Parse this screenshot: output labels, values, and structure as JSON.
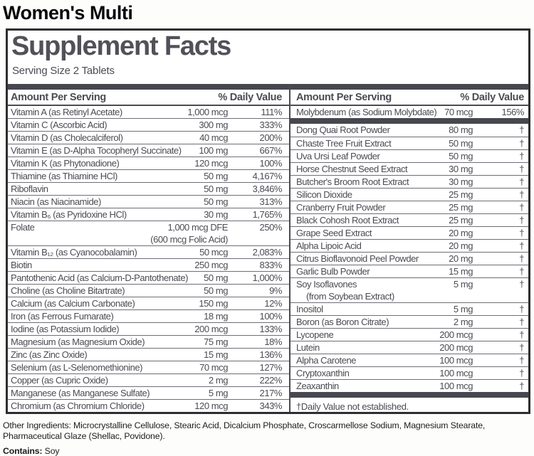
{
  "product_title": "Women's Multi",
  "panel": {
    "title": "Supplement Facts",
    "serving_size": "Serving Size 2 Tablets",
    "columns_header": {
      "amount": "Amount Per Serving",
      "dv": "% Daily Value"
    },
    "left_column": {
      "rows": [
        {
          "name": "Vitamin A (as Retinyl Acetate)",
          "amount": "1,000 mcg",
          "dv": "111%"
        },
        {
          "name": "Vitamin C (Ascorbic Acid)",
          "amount": "300 mg",
          "dv": "333%"
        },
        {
          "name": "Vitamin D (as Cholecalciferol)",
          "amount": "40 mcg",
          "dv": "200%"
        },
        {
          "name": "Vitamin E (as D-Alpha Tocopheryl Succinate)",
          "amount": "100 mg",
          "dv": "667%"
        },
        {
          "name": "Vitamin K (as Phytonadione)",
          "amount": "120 mcg",
          "dv": "100%"
        },
        {
          "name": "Thiamine (as Thiamine HCl)",
          "amount": "50 mg",
          "dv": "4,167%"
        },
        {
          "name": "Riboflavin",
          "amount": "50 mg",
          "dv": "3,846%"
        },
        {
          "name": "Niacin (as Niacinamide)",
          "amount": "50 mg",
          "dv": "313%"
        },
        {
          "name": "Vitamin B₆ (as Pyridoxine HCl)",
          "amount": "30 mg",
          "dv": "1,765%"
        },
        {
          "name": "Folate",
          "amount": "1,000 mcg DFE",
          "amount_sub": "(600 mcg Folic Acid)",
          "dv": "250%"
        },
        {
          "name": "Vitamin B₁₂ (as Cyanocobalamin)",
          "amount": "50 mcg",
          "dv": "2,083%"
        },
        {
          "name": "Biotin",
          "amount": "250 mcg",
          "dv": "833%"
        },
        {
          "name": "Pantothenic Acid (as Calcium-D-Pantothenate)",
          "amount": "50 mg",
          "dv": "1,000%"
        },
        {
          "name": "Choline (as Choline Bitartrate)",
          "amount": "50 mg",
          "dv": "9%"
        },
        {
          "name": "Calcium (as Calcium Carbonate)",
          "amount": "150 mg",
          "dv": "12%"
        },
        {
          "name": "Iron (as Ferrous Fumarate)",
          "amount": "18 mg",
          "dv": "100%"
        },
        {
          "name": "Iodine (as Potassium Iodide)",
          "amount": "200 mcg",
          "dv": "133%"
        },
        {
          "name": "Magnesium (as Magnesium Oxide)",
          "amount": "75 mg",
          "dv": "18%"
        },
        {
          "name": "Zinc (as Zinc Oxide)",
          "amount": "15 mg",
          "dv": "136%"
        },
        {
          "name": "Selenium (as L-Selenomethionine)",
          "amount": "70 mcg",
          "dv": "127%"
        },
        {
          "name": "Copper (as Cupric Oxide)",
          "amount": "2 mg",
          "dv": "222%"
        },
        {
          "name": "Manganese (as Manganese Sulfate)",
          "amount": "5 mg",
          "dv": "217%"
        },
        {
          "name": "Chromium (as Chromium Chloride)",
          "amount": "120 mcg",
          "dv": "343%"
        }
      ]
    },
    "right_column": {
      "rows": [
        {
          "name": "Molybdenum (as Sodium Molybdate)",
          "amount": "70 mcg",
          "dv": "156%"
        },
        {
          "type": "bar"
        },
        {
          "name": "Dong Quai Root Powder",
          "amount": "80 mg",
          "dv": "†"
        },
        {
          "name": "Chaste Tree Fruit Extract",
          "amount": "50 mg",
          "dv": "†"
        },
        {
          "name": "Uva Ursi Leaf Powder",
          "amount": "50 mg",
          "dv": "†"
        },
        {
          "name": "Horse Chestnut Seed Extract",
          "amount": "30 mg",
          "dv": "†"
        },
        {
          "name": "Butcher's Broom Root Extract",
          "amount": "30 mg",
          "dv": "†"
        },
        {
          "name": "Silicon Dioxide",
          "amount": "25 mg",
          "dv": "†"
        },
        {
          "name": "Cranberry Fruit Powder",
          "amount": "25 mg",
          "dv": "†"
        },
        {
          "name": "Black Cohosh Root Extract",
          "amount": "25 mg",
          "dv": "†"
        },
        {
          "name": "Grape Seed Extract",
          "amount": "20 mg",
          "dv": "†"
        },
        {
          "name": "Alpha Lipoic Acid",
          "amount": "20 mg",
          "dv": "†"
        },
        {
          "name": "Citrus Bioflavonoid Peel Powder",
          "amount": "20 mg",
          "dv": "†"
        },
        {
          "name": "Garlic Bulb Powder",
          "amount": "15 mg",
          "dv": "†"
        },
        {
          "name": "Soy Isoflavones",
          "name_sub": "(from Soybean Extract)",
          "amount": "5 mg",
          "dv": "†"
        },
        {
          "name": "Inositol",
          "amount": "5 mg",
          "dv": "†"
        },
        {
          "name": "Boron (as Boron Citrate)",
          "amount": "2 mg",
          "dv": "†"
        },
        {
          "name": "Lycopene",
          "amount": "200 mcg",
          "dv": "†"
        },
        {
          "name": "Lutein",
          "amount": "200 mcg",
          "dv": "†"
        },
        {
          "name": "Alpha Carotene",
          "amount": "100 mcg",
          "dv": "†"
        },
        {
          "name": "Cryptoxanthin",
          "amount": "100 mcg",
          "dv": "†"
        },
        {
          "name": "Zeaxanthin",
          "amount": "100 mcg",
          "dv": "†"
        },
        {
          "type": "bar"
        }
      ],
      "footnote": "†Daily Value not established."
    }
  },
  "footer": {
    "other_ingredients_label": "Other Ingredients:",
    "other_ingredients": "Microcrystalline Cellulose, Stearic Acid, Dicalcium Phosphate, Croscarmellose Sodium, Magnesium Stearate, Pharmaceutical Glaze (Shellac, Povidone).",
    "contains_label": "Contains:",
    "contains": "Soy"
  },
  "colors": {
    "text": "#4b4b53",
    "section_bar": "#47474f",
    "box_border": "#2e2e32",
    "title_text": "#08080a"
  }
}
